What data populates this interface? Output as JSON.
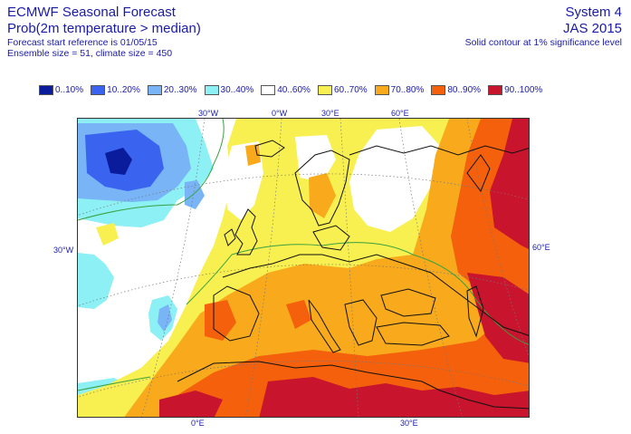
{
  "header": {
    "title": "ECMWF Seasonal Forecast",
    "subtitle": "Prob(2m temperature > median)",
    "start_reference": "Forecast start reference is 01/05/15",
    "ensemble": "Ensemble size = 51, climate size = 450",
    "system": "System 4",
    "season": "JAS 2015",
    "contour_note": "Solid contour at 1% significance level"
  },
  "legend": [
    {
      "label": "0..10%",
      "color": "#0a1c9c"
    },
    {
      "label": "10..20%",
      "color": "#3a64f0"
    },
    {
      "label": "20..30%",
      "color": "#78b4f6"
    },
    {
      "label": "30..40%",
      "color": "#8cf0f4"
    },
    {
      "label": "40..60%",
      "color": "#ffffff"
    },
    {
      "label": "60..70%",
      "color": "#f8f050"
    },
    {
      "label": "70..80%",
      "color": "#f8aa1c"
    },
    {
      "label": "80..90%",
      "color": "#f4600c"
    },
    {
      "label": "90..100%",
      "color": "#c8142c"
    }
  ],
  "map": {
    "top_labels": [
      "30°W",
      "0°W",
      "30°E",
      "60°E"
    ],
    "left_label": "30°W",
    "right_label": "60°E",
    "bottom_labels": [
      "0°E",
      "30°E"
    ]
  }
}
